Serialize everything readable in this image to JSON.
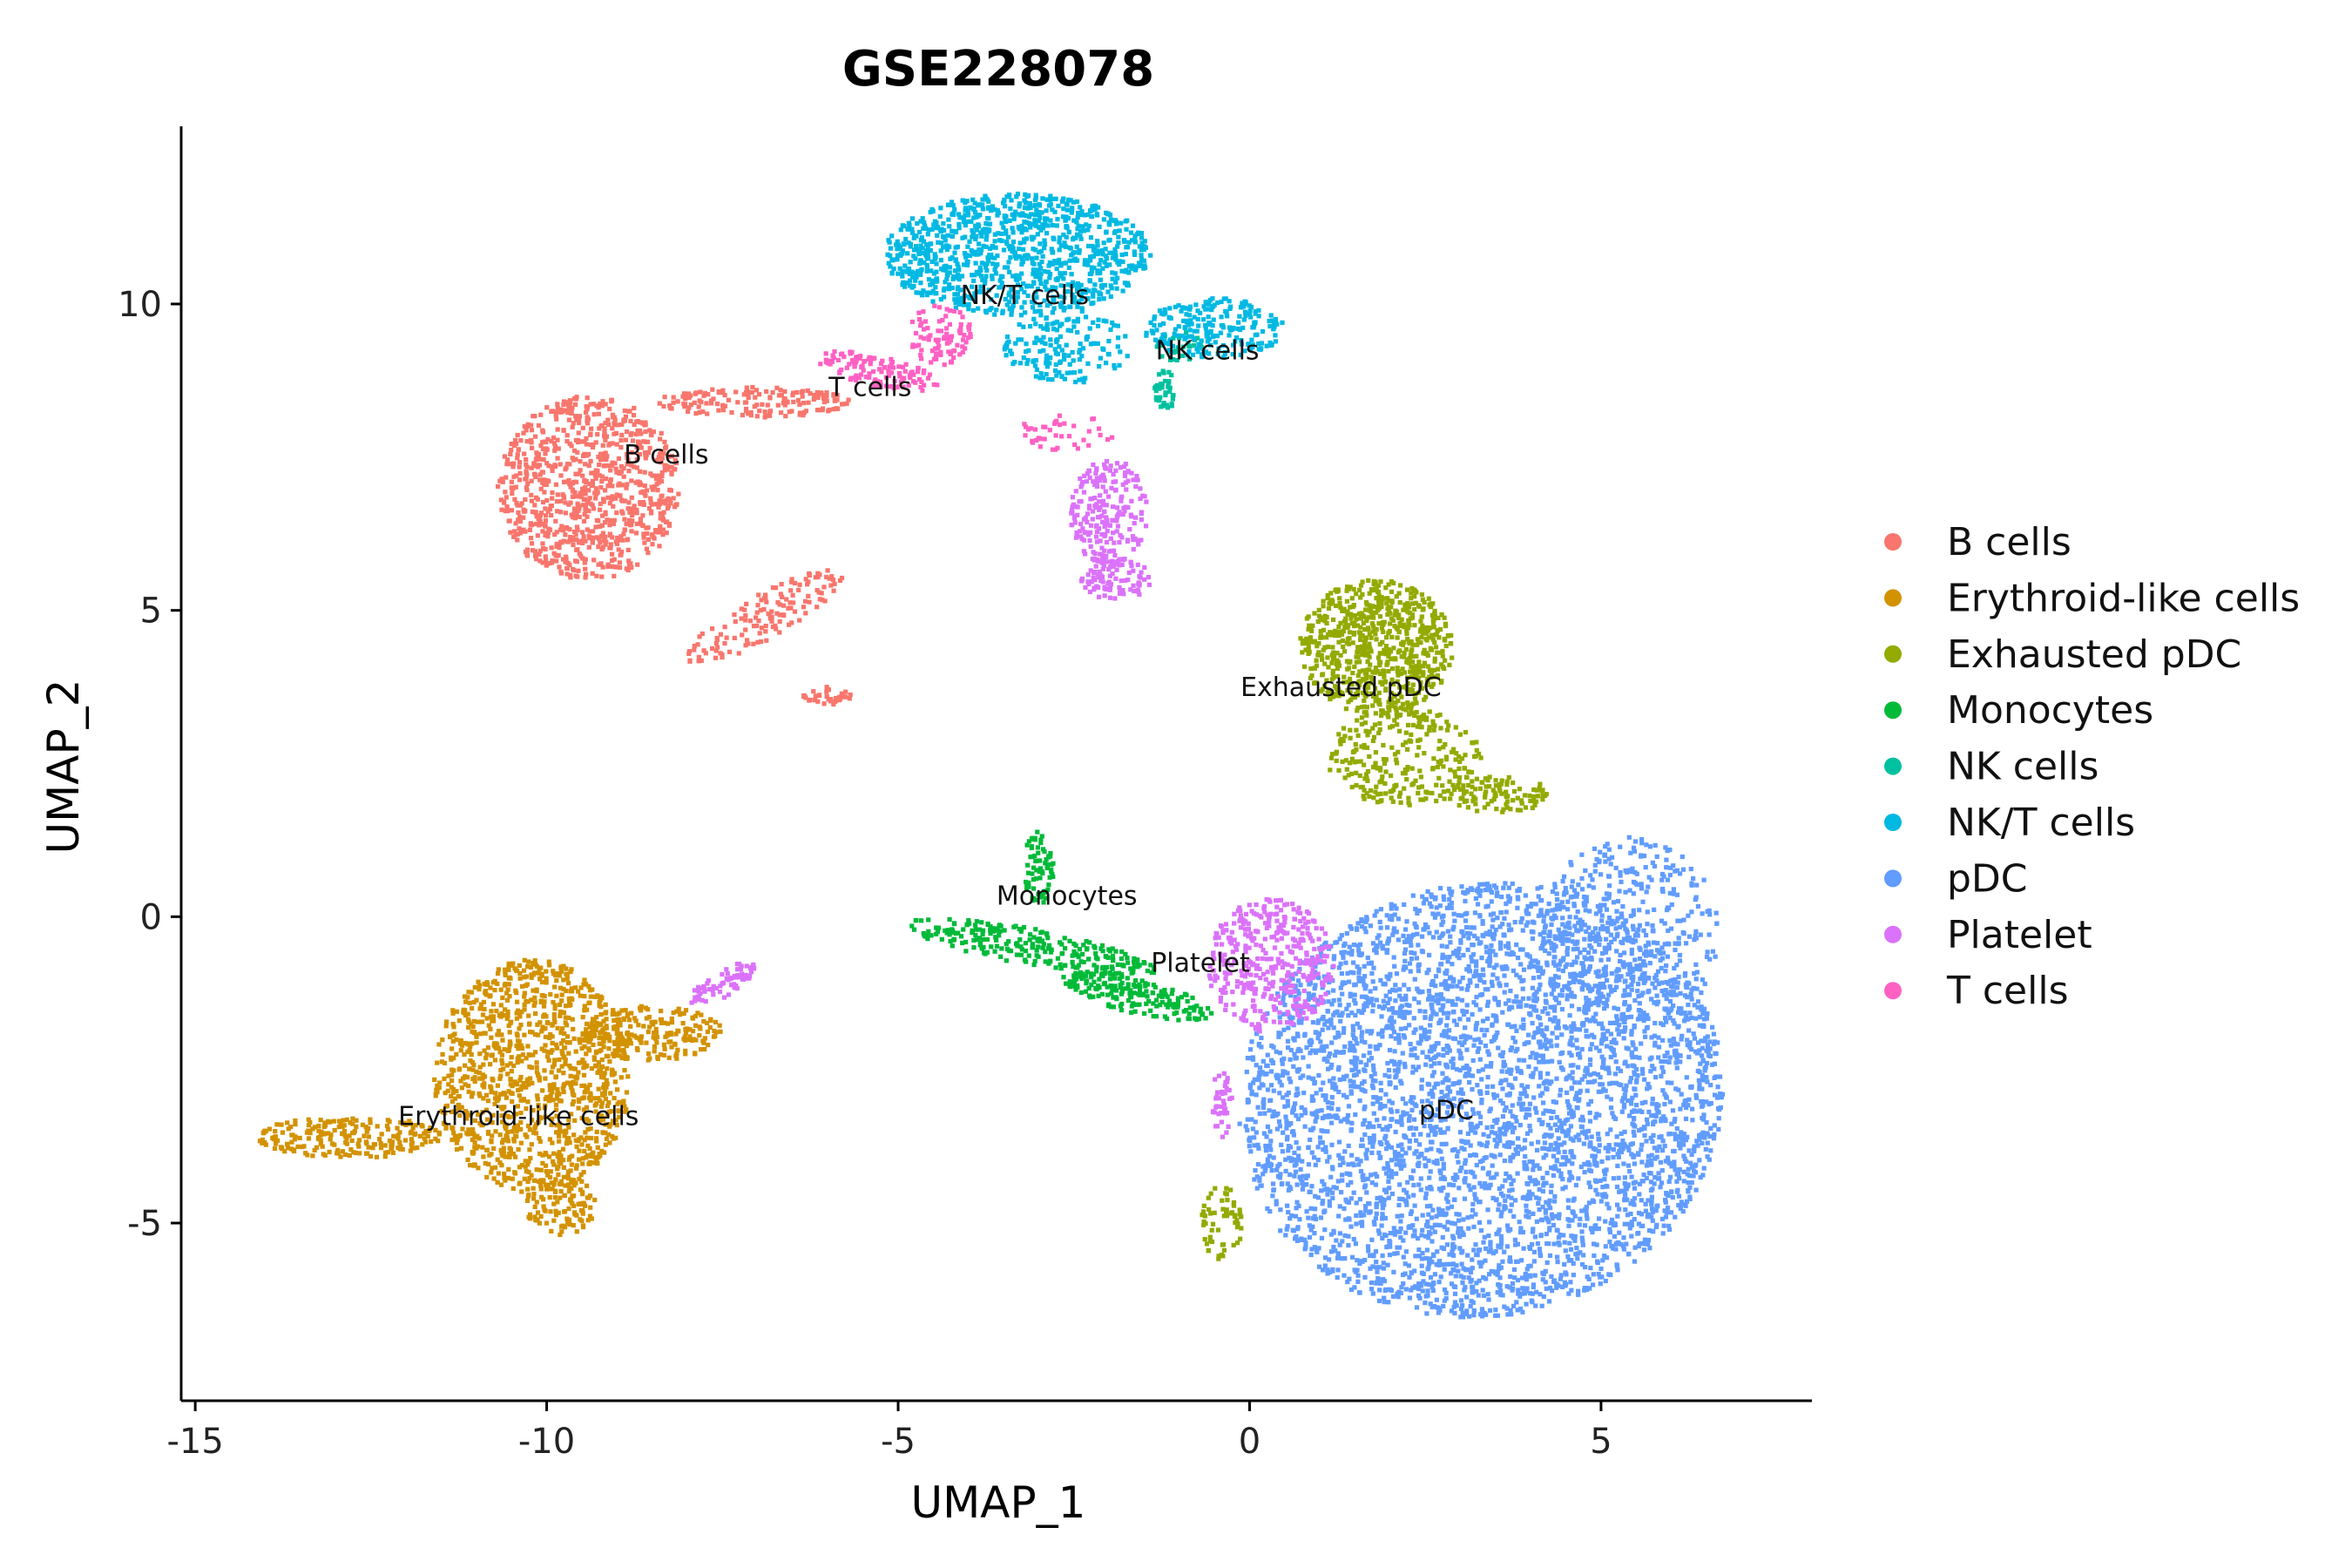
{
  "chart_data": {
    "type": "scatter",
    "title": "GSE228078",
    "xlabel": "UMAP_1",
    "ylabel": "UMAP_2",
    "xlim": [
      -15.2,
      8.0
    ],
    "ylim": [
      -7.9,
      12.9
    ],
    "x_ticks": [
      -15,
      -10,
      -5,
      0,
      5
    ],
    "x_tick_labels": [
      "-15",
      "-10",
      "-5",
      "0",
      "5"
    ],
    "y_ticks": [
      -5,
      0,
      5,
      10
    ],
    "y_tick_labels": [
      "-5",
      "0",
      "5",
      "10"
    ],
    "grid": false,
    "legend_position": "right",
    "series": [
      {
        "name": "B cells",
        "color": "#F8766D",
        "label": {
          "text": "B cells",
          "x": -8.3,
          "y": 7.4
        },
        "regions": [
          {
            "cx": -9.4,
            "cy": 7.0,
            "rx": 1.3,
            "ry": 1.5,
            "n": 900
          },
          {
            "cx": -7.0,
            "cy": 8.4,
            "rx": 1.4,
            "ry": 0.25,
            "n": 160
          },
          {
            "cx": -6.9,
            "cy": 4.9,
            "rx": 1.3,
            "ry": 0.35,
            "n": 140,
            "rot": 33
          },
          {
            "cx": -6.0,
            "cy": 3.6,
            "rx": 0.35,
            "ry": 0.15,
            "n": 40
          }
        ]
      },
      {
        "name": "Erythroid-like cells",
        "color": "#D39200",
        "label": {
          "text": "Erythroid-like cells",
          "x": -10.4,
          "y": -3.4
        },
        "regions": [
          {
            "cx": -10.2,
            "cy": -2.6,
            "rx": 1.4,
            "ry": 1.9,
            "n": 1100
          },
          {
            "cx": -12.8,
            "cy": -3.6,
            "rx": 1.3,
            "ry": 0.35,
            "n": 220
          },
          {
            "cx": -8.5,
            "cy": -1.9,
            "rx": 1.0,
            "ry": 0.45,
            "n": 200
          },
          {
            "cx": -9.8,
            "cy": -4.7,
            "rx": 0.5,
            "ry": 0.5,
            "n": 120
          }
        ]
      },
      {
        "name": "Exhausted pDC",
        "color": "#93AA00",
        "label": {
          "text": "Exhausted pDC",
          "x": 1.3,
          "y": 3.6
        },
        "regions": [
          {
            "cx": 1.8,
            "cy": 4.4,
            "rx": 1.1,
            "ry": 1.1,
            "n": 700
          },
          {
            "cx": 2.2,
            "cy": 2.6,
            "rx": 1.1,
            "ry": 0.8,
            "n": 260
          },
          {
            "cx": 3.5,
            "cy": 2.0,
            "rx": 0.8,
            "ry": 0.3,
            "n": 100
          },
          {
            "cx": -0.4,
            "cy": -5.0,
            "rx": 0.3,
            "ry": 0.6,
            "n": 60
          }
        ]
      },
      {
        "name": "Monocytes",
        "color": "#00BA38",
        "label": {
          "text": "Monocytes",
          "x": -2.6,
          "y": 0.2
        },
        "regions": [
          {
            "cx": -3.1,
            "cy": -0.5,
            "rx": 1.8,
            "ry": 0.3,
            "n": 260,
            "rot": -12
          },
          {
            "cx": -1.6,
            "cy": -1.3,
            "rx": 1.1,
            "ry": 0.28,
            "n": 180,
            "rot": -15
          },
          {
            "cx": -3.0,
            "cy": 0.8,
            "rx": 0.22,
            "ry": 0.6,
            "n": 70
          }
        ]
      },
      {
        "name": "NK cells",
        "color": "#00C19F",
        "label": {
          "text": "NK cells",
          "x": -0.6,
          "y": 9.1
        },
        "regions": [
          {
            "cx": -1.2,
            "cy": 8.6,
            "rx": 0.15,
            "ry": 0.35,
            "n": 40
          },
          {
            "cx": -1.0,
            "cy": 9.3,
            "rx": 0.35,
            "ry": 0.25,
            "n": 30
          }
        ]
      },
      {
        "name": "NK/T cells",
        "color": "#00B9E3",
        "label": {
          "text": "NK/T cells",
          "x": -3.2,
          "y": 10.0
        },
        "regions": [
          {
            "cx": -3.3,
            "cy": 10.8,
            "rx": 1.9,
            "ry": 1.0,
            "n": 1000
          },
          {
            "cx": -0.5,
            "cy": 9.6,
            "rx": 1.0,
            "ry": 0.5,
            "n": 220
          },
          {
            "cx": -2.6,
            "cy": 9.3,
            "rx": 0.9,
            "ry": 0.6,
            "n": 160
          }
        ]
      },
      {
        "name": "pDC",
        "color": "#619CFF",
        "label": {
          "text": "pDC",
          "x": 2.8,
          "y": -3.3
        },
        "regions": [
          {
            "cx": 3.3,
            "cy": -3.0,
            "rx": 3.4,
            "ry": 3.6,
            "n": 4200,
            "rot": -30
          },
          {
            "cx": 5.4,
            "cy": -0.3,
            "rx": 1.3,
            "ry": 1.6,
            "n": 400
          }
        ]
      },
      {
        "name": "Platelet",
        "color": "#DB72FB",
        "label": {
          "text": "Platelet",
          "x": -0.7,
          "y": -0.9
        },
        "regions": [
          {
            "cx": 0.3,
            "cy": -0.8,
            "rx": 0.9,
            "ry": 1.1,
            "n": 380
          },
          {
            "cx": -2.0,
            "cy": 6.6,
            "rx": 0.55,
            "ry": 0.9,
            "n": 220
          },
          {
            "cx": -1.9,
            "cy": 5.5,
            "rx": 0.5,
            "ry": 0.35,
            "n": 90
          },
          {
            "cx": -0.4,
            "cy": -3.0,
            "rx": 0.15,
            "ry": 0.6,
            "n": 40
          },
          {
            "cx": -7.5,
            "cy": -1.1,
            "rx": 0.55,
            "ry": 0.2,
            "n": 70,
            "rot": 35
          }
        ]
      },
      {
        "name": "T cells",
        "color": "#FF61C3",
        "label": {
          "text": "T cells",
          "x": -5.4,
          "y": 8.5
        },
        "regions": [
          {
            "cx": -5.3,
            "cy": 8.9,
            "rx": 0.9,
            "ry": 0.25,
            "n": 120,
            "rot": -14
          },
          {
            "cx": -4.4,
            "cy": 9.5,
            "rx": 0.45,
            "ry": 0.5,
            "n": 90
          },
          {
            "cx": -2.6,
            "cy": 7.9,
            "rx": 0.7,
            "ry": 0.3,
            "n": 40
          }
        ]
      }
    ]
  }
}
